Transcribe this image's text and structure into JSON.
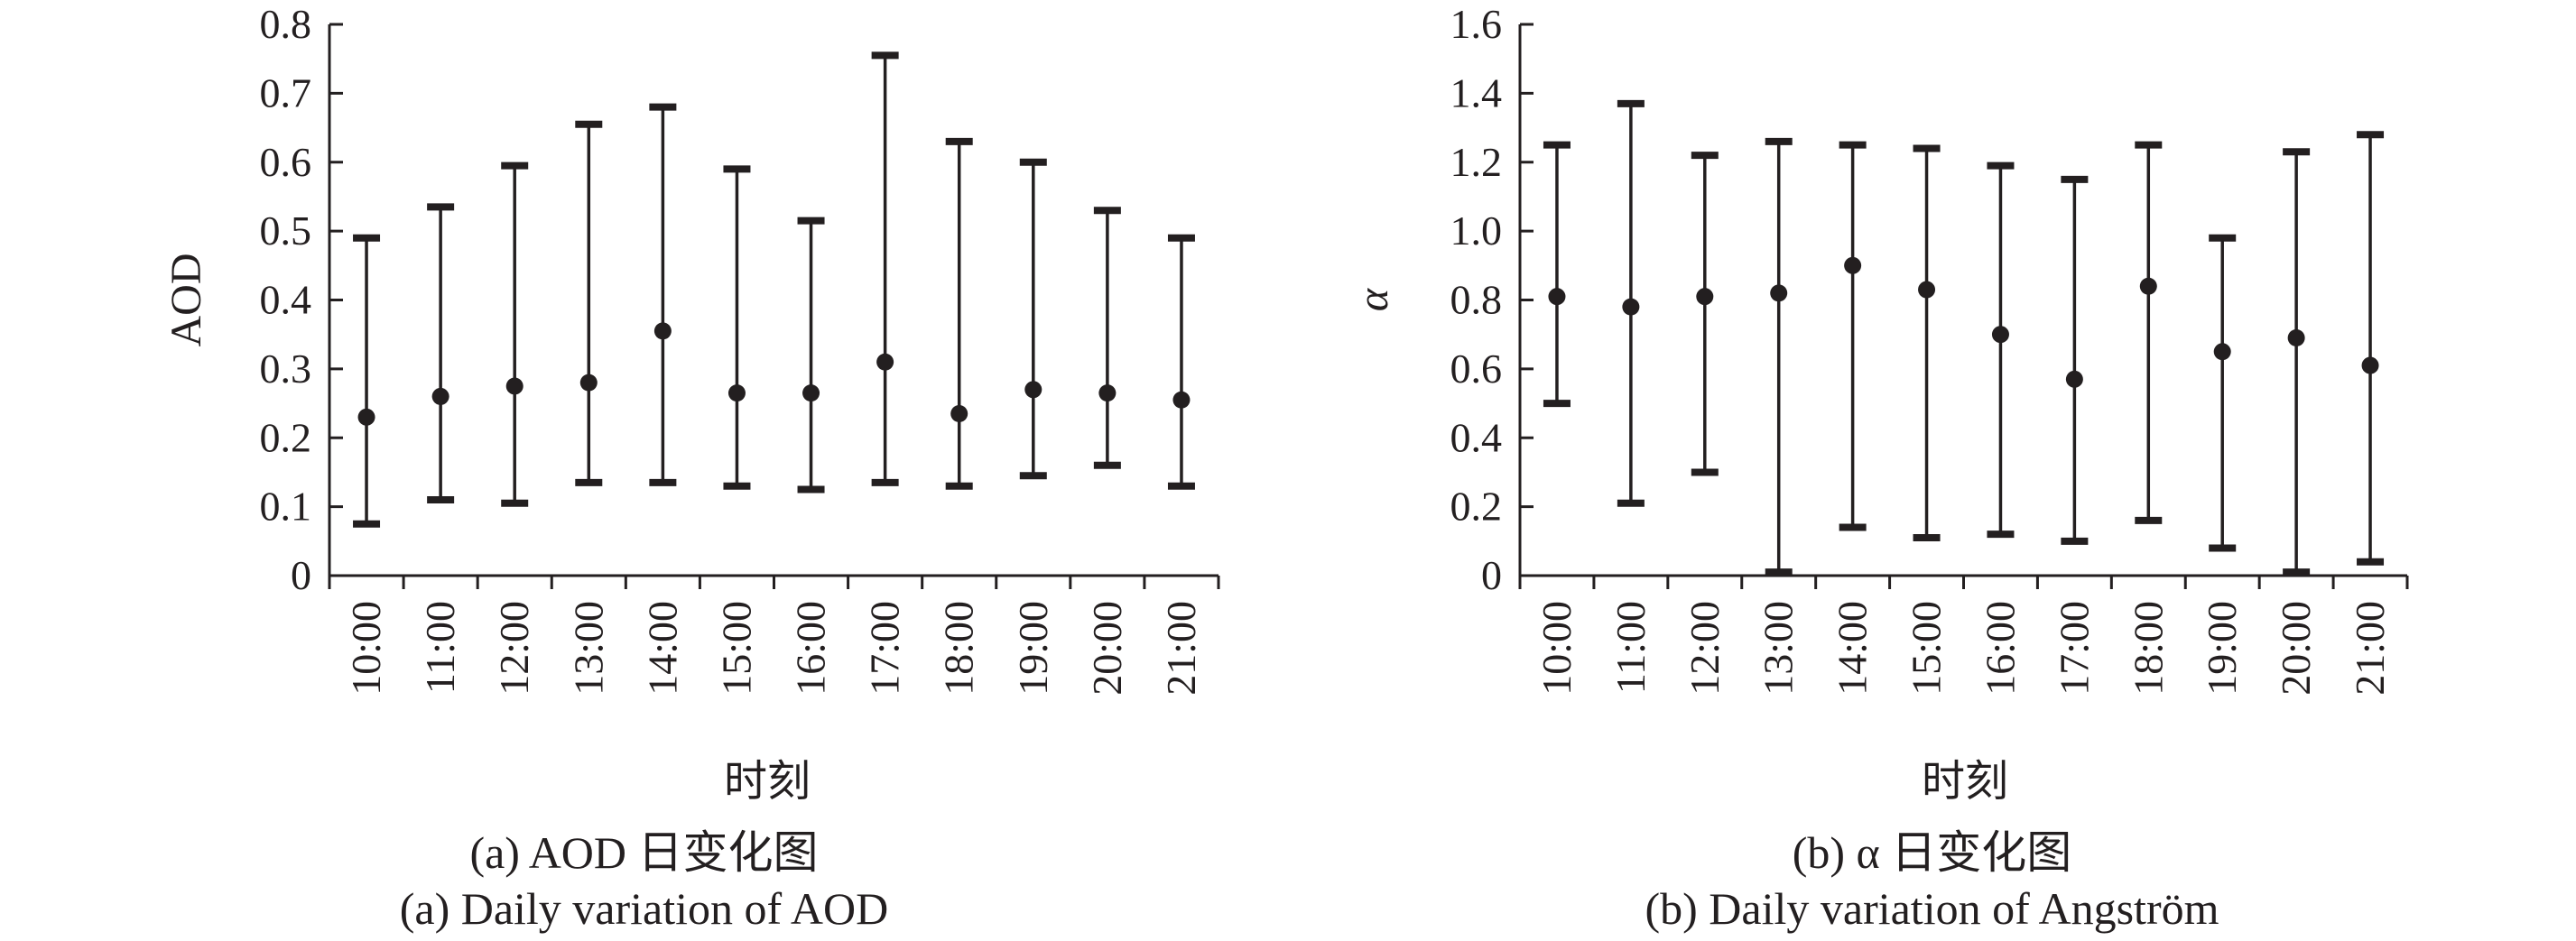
{
  "chart_data": [
    {
      "type": "scatter",
      "title": "(a) AOD 日变化图",
      "subtitle": "(a) Daily variation of AOD",
      "xlabel": "时刻",
      "ylabel": "AOD",
      "categories": [
        "10:00",
        "11:00",
        "12:00",
        "13:00",
        "14:00",
        "15:00",
        "16:00",
        "17:00",
        "18:00",
        "19:00",
        "20:00",
        "21:00"
      ],
      "ylim": [
        0,
        0.8
      ],
      "yticks": [
        "0",
        "0.1",
        "0.2",
        "0.3",
        "0.4",
        "0.5",
        "0.6",
        "0.7",
        "0.8"
      ],
      "series": [
        {
          "values": [
            0.23,
            0.26,
            0.275,
            0.28,
            0.355,
            0.265,
            0.265,
            0.31,
            0.235,
            0.27,
            0.265,
            0.255
          ],
          "min": [
            0.075,
            0.11,
            0.105,
            0.135,
            0.135,
            0.13,
            0.125,
            0.135,
            0.13,
            0.145,
            0.16,
            0.13
          ],
          "max": [
            0.49,
            0.535,
            0.595,
            0.655,
            0.68,
            0.59,
            0.515,
            0.755,
            0.63,
            0.6,
            0.53,
            0.49
          ]
        }
      ],
      "grid": false,
      "color": "#231f20"
    },
    {
      "type": "scatter",
      "title": "(b) α 日变化图",
      "subtitle": "(b) Daily variation of Angström",
      "xlabel": "时刻",
      "ylabel": "α",
      "categories": [
        "10:00",
        "11:00",
        "12:00",
        "13:00",
        "14:00",
        "15:00",
        "16:00",
        "17:00",
        "18:00",
        "19:00",
        "20:00",
        "21:00"
      ],
      "ylim": [
        0,
        1.6
      ],
      "yticks": [
        "0",
        "0.2",
        "0.4",
        "0.6",
        "0.8",
        "1.0",
        "1.2",
        "1.4",
        "1.6"
      ],
      "series": [
        {
          "values": [
            0.81,
            0.78,
            0.81,
            0.82,
            0.9,
            0.83,
            0.7,
            0.57,
            0.84,
            0.65,
            0.69,
            0.61
          ],
          "min": [
            0.5,
            0.21,
            0.3,
            0.01,
            0.14,
            0.11,
            0.12,
            0.1,
            0.16,
            0.08,
            0.01,
            0.04
          ],
          "max": [
            1.25,
            1.37,
            1.22,
            1.26,
            1.25,
            1.24,
            1.19,
            1.15,
            1.25,
            0.98,
            1.23,
            1.28
          ]
        }
      ],
      "grid": false,
      "color": "#231f20"
    }
  ]
}
